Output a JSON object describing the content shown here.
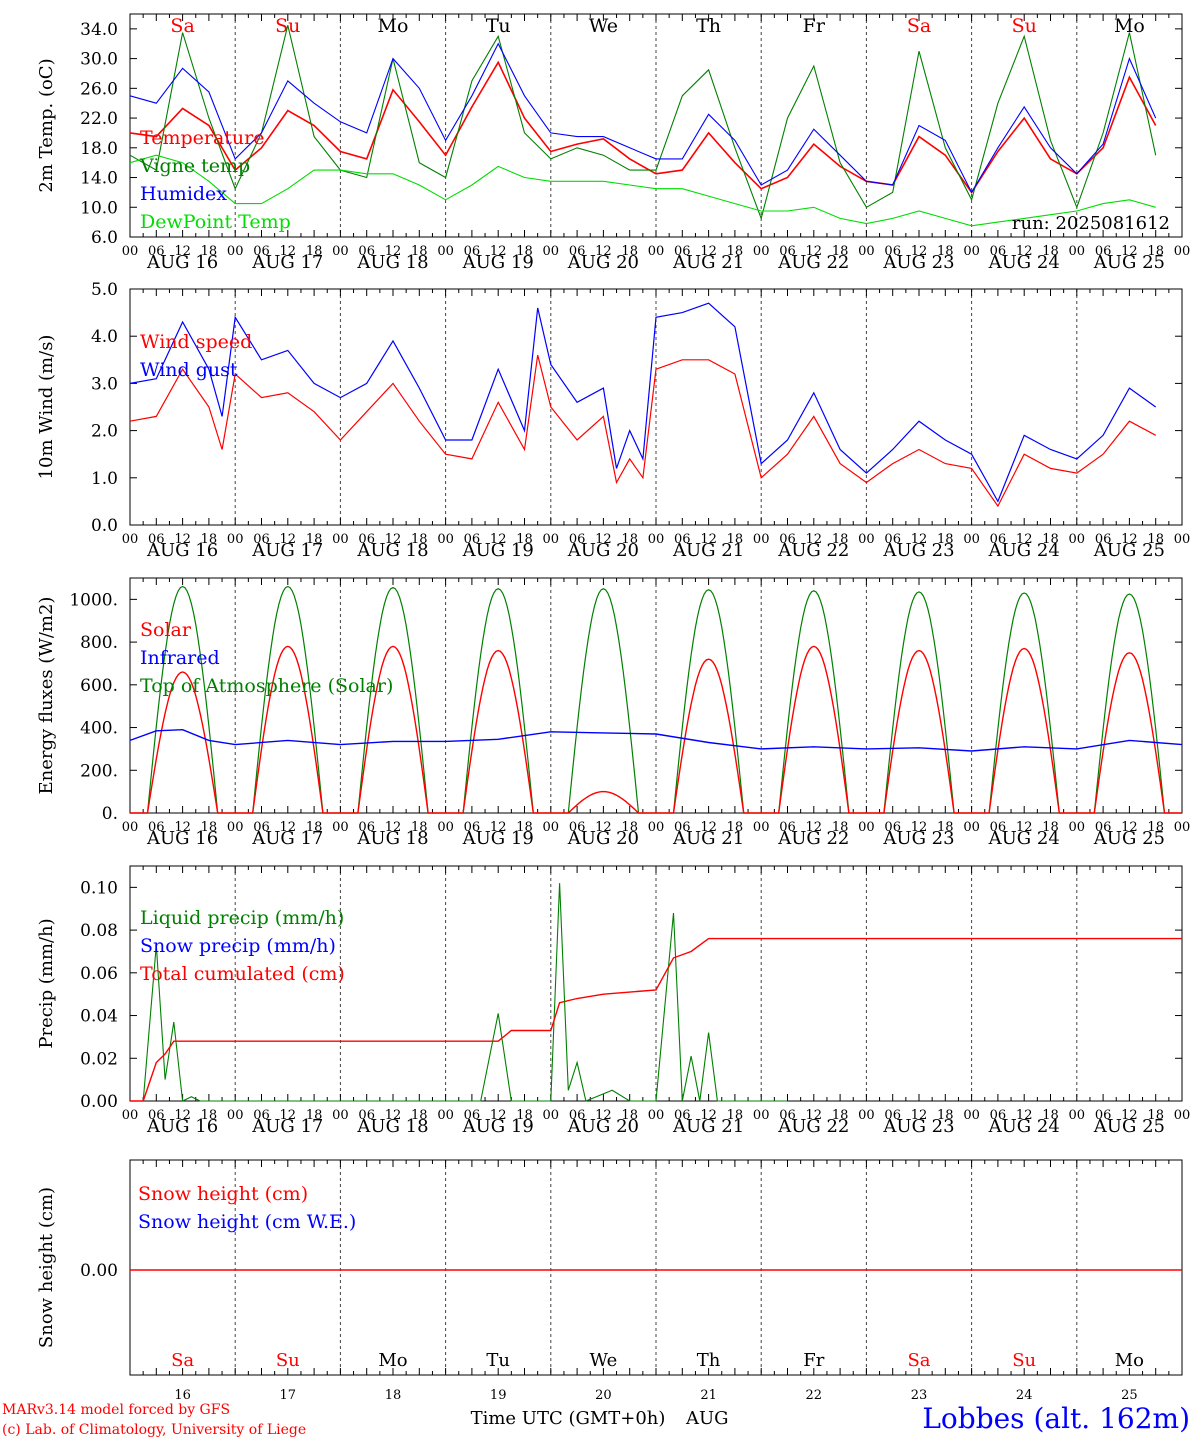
{
  "colors": {
    "red": "#ff0000",
    "green": "#008000",
    "blue": "#0000ff",
    "lime": "#00dd00",
    "black": "#000000"
  },
  "day_abbr": [
    "Sa",
    "Su",
    "Mo",
    "Tu",
    "We",
    "Th",
    "Fr",
    "Sa",
    "Su",
    "Mo"
  ],
  "day_abbr_colors": [
    "#ff0000",
    "#ff0000",
    "#000000",
    "#000000",
    "#000000",
    "#000000",
    "#000000",
    "#ff0000",
    "#ff0000",
    "#000000"
  ],
  "date_labels": [
    "AUG 16",
    "AUG 17",
    "AUG 18",
    "AUG 19",
    "AUG 20",
    "AUG 21",
    "AUG 22",
    "AUG 23",
    "AUG 24",
    "AUG 25"
  ],
  "hour_labels": [
    "00",
    "06",
    "12",
    "18"
  ],
  "bottom_day_numbers": [
    "16",
    "17",
    "18",
    "19",
    "20",
    "21",
    "22",
    "23",
    "24",
    "25"
  ],
  "footer": {
    "credit_line1": "MARv3.14 model forced by GFS",
    "credit_line2": "(c) Lab. of Climatology, University of Liege",
    "axis_title": "Time UTC (GMT+0h)",
    "month": "AUG",
    "location": "Lobbes (alt. 162m)"
  },
  "chart_data": [
    {
      "type": "line",
      "ylabel": "2m Temp. (oC)",
      "ylim": [
        6.0,
        36.0
      ],
      "yticks": [
        "6.0",
        "10.0",
        "14.0",
        "18.0",
        "22.0",
        "26.0",
        "30.0",
        "34.0"
      ],
      "annotation": "run: 2025081612",
      "x_hours": [
        0,
        6,
        12,
        18,
        24,
        30,
        36,
        42,
        48,
        54,
        60,
        66,
        72,
        78,
        84,
        90,
        96,
        102,
        108,
        114,
        120,
        126,
        132,
        138,
        144,
        150,
        156,
        162,
        168,
        174,
        180,
        186,
        192,
        198,
        204,
        210,
        216,
        222,
        228,
        234
      ],
      "series": [
        {
          "name": "Temperature",
          "color": "#ff0000",
          "values": [
            20.0,
            19.5,
            23.3,
            21.0,
            15.0,
            18.0,
            23.0,
            21.0,
            17.5,
            16.5,
            25.8,
            21.5,
            17.0,
            23.5,
            29.5,
            22.0,
            17.5,
            18.5,
            19.2,
            16.5,
            14.5,
            15.0,
            20.0,
            16.0,
            12.5,
            14.0,
            18.5,
            15.5,
            13.5,
            13.0,
            19.5,
            17.0,
            12.0,
            17.5,
            22.0,
            16.5,
            14.5,
            18.0,
            27.5,
            21.0
          ]
        },
        {
          "name": "Vigne temp",
          "color": "#008000",
          "values": [
            17.0,
            15.0,
            33.5,
            22.0,
            12.5,
            20.0,
            34.5,
            19.5,
            15.0,
            14.0,
            30.0,
            16.0,
            14.0,
            27.0,
            33.0,
            20.0,
            16.5,
            18.0,
            17.0,
            15.0,
            15.0,
            25.0,
            28.5,
            18.0,
            8.5,
            22.0,
            29.0,
            16.0,
            10.0,
            12.0,
            31.0,
            18.0,
            11.0,
            24.0,
            33.0,
            19.0,
            10.0,
            20.0,
            33.5,
            17.0
          ]
        },
        {
          "name": "Humidex",
          "color": "#0000ff",
          "values": [
            25.0,
            24.0,
            28.7,
            25.5,
            16.5,
            20.0,
            27.0,
            24.0,
            21.5,
            20.0,
            30.0,
            26.0,
            19.0,
            25.0,
            32.0,
            25.0,
            20.0,
            19.5,
            19.5,
            18.0,
            16.5,
            16.5,
            22.5,
            19.0,
            13.0,
            15.0,
            20.5,
            17.0,
            13.5,
            13.0,
            21.0,
            19.0,
            12.0,
            18.0,
            23.5,
            18.0,
            14.5,
            18.5,
            30.0,
            22.0
          ]
        },
        {
          "name": "DewPoint Temp",
          "color": "#00dd00",
          "values": [
            16.0,
            17.0,
            16.0,
            13.5,
            10.5,
            10.5,
            12.5,
            15.0,
            15.0,
            14.5,
            14.5,
            13.0,
            11.0,
            13.0,
            15.5,
            14.0,
            13.5,
            13.5,
            13.5,
            13.0,
            12.5,
            12.5,
            11.5,
            10.5,
            9.5,
            9.5,
            10.0,
            8.5,
            7.8,
            8.5,
            9.5,
            8.5,
            7.5,
            8.0,
            8.5,
            9.0,
            9.5,
            10.5,
            11.0,
            10.0
          ]
        }
      ]
    },
    {
      "type": "line",
      "ylabel": "10m Wind (m/s)",
      "ylim": [
        0.0,
        5.0
      ],
      "yticks": [
        "0.0",
        "1.0",
        "2.0",
        "3.0",
        "4.0",
        "5.0"
      ],
      "x_hours": [
        0,
        6,
        12,
        18,
        21,
        24,
        30,
        36,
        42,
        48,
        54,
        60,
        66,
        72,
        78,
        84,
        90,
        93,
        96,
        102,
        108,
        111,
        114,
        117,
        120,
        126,
        132,
        138,
        144,
        150,
        156,
        162,
        168,
        174,
        180,
        186,
        192,
        198,
        204,
        210,
        216,
        222,
        228,
        234
      ],
      "series": [
        {
          "name": "Wind speed",
          "color": "#ff0000",
          "values": [
            2.2,
            2.3,
            3.3,
            2.5,
            1.6,
            3.2,
            2.7,
            2.8,
            2.4,
            1.8,
            2.4,
            3.0,
            2.2,
            1.5,
            1.4,
            2.6,
            1.6,
            3.6,
            2.5,
            1.8,
            2.3,
            0.9,
            1.4,
            1.0,
            3.3,
            3.5,
            3.5,
            3.2,
            1.0,
            1.5,
            2.3,
            1.3,
            0.9,
            1.3,
            1.6,
            1.3,
            1.2,
            0.4,
            1.5,
            1.2,
            1.1,
            1.5,
            2.2,
            1.9
          ]
        },
        {
          "name": "Wind gust",
          "color": "#0000ff",
          "values": [
            3.0,
            3.1,
            4.3,
            3.3,
            2.3,
            4.4,
            3.5,
            3.7,
            3.0,
            2.7,
            3.0,
            3.9,
            2.9,
            1.8,
            1.8,
            3.3,
            2.0,
            4.6,
            3.4,
            2.6,
            2.9,
            1.2,
            2.0,
            1.4,
            4.4,
            4.5,
            4.7,
            4.2,
            1.3,
            1.8,
            2.8,
            1.6,
            1.1,
            1.6,
            2.2,
            1.8,
            1.5,
            0.5,
            1.9,
            1.6,
            1.4,
            1.9,
            2.9,
            2.5
          ]
        }
      ]
    },
    {
      "type": "line",
      "ylabel": "Energy fluxes (W/m2)",
      "ylim": [
        0,
        1100
      ],
      "yticks": [
        "0.",
        "200.",
        "400.",
        "600.",
        "800.",
        "1000."
      ],
      "series": [
        {
          "name": "Solar",
          "color": "#ff0000",
          "daily_peak": [
            660,
            780,
            780,
            760,
            100,
            720,
            780,
            760,
            770,
            750
          ]
        },
        {
          "name": "Infrared",
          "color": "#0000ff",
          "x_hours": [
            0,
            6,
            12,
            18,
            24,
            36,
            48,
            60,
            72,
            84,
            96,
            108,
            120,
            132,
            144,
            156,
            168,
            180,
            192,
            204,
            216,
            228,
            240
          ],
          "values": [
            340,
            385,
            390,
            340,
            320,
            340,
            320,
            335,
            335,
            345,
            380,
            375,
            370,
            330,
            300,
            310,
            300,
            305,
            290,
            310,
            300,
            340,
            320
          ]
        },
        {
          "name": "Top of Atmosphere (Solar)",
          "color": "#008000",
          "daily_peak": [
            1060,
            1060,
            1055,
            1050,
            1050,
            1045,
            1040,
            1035,
            1030,
            1025
          ]
        }
      ]
    },
    {
      "type": "line",
      "ylabel": "Precip (mm/h)",
      "ylim": [
        0.0,
        0.11
      ],
      "yticks": [
        "0.00",
        "0.02",
        "0.04",
        "0.06",
        "0.08",
        "0.10"
      ],
      "series": [
        {
          "name": "Liquid precip (mm/h)",
          "color": "#008000",
          "x_hours": [
            0,
            3,
            6,
            8,
            10,
            12,
            14,
            16,
            24,
            80,
            84,
            87,
            96,
            98,
            100,
            102,
            104,
            110,
            114,
            120,
            124,
            126,
            128,
            130,
            132,
            134,
            140,
            144,
            150
          ],
          "values": [
            0,
            0,
            0.073,
            0.01,
            0.037,
            0,
            0.002,
            0,
            0,
            0,
            0.041,
            0,
            0.0,
            0.102,
            0.005,
            0.018,
            0.0,
            0.005,
            0.0,
            0.0,
            0.088,
            0.0,
            0.021,
            0.0,
            0.032,
            0.0,
            0,
            0,
            0
          ]
        },
        {
          "name": "Snow precip (mm/h)",
          "color": "#0000ff"
        },
        {
          "name": "Total cumulated (cm)",
          "color": "#ff0000",
          "x_hours": [
            0,
            3,
            6,
            8,
            10,
            12,
            84,
            87,
            96,
            98,
            102,
            108,
            120,
            124,
            128,
            132,
            144,
            240
          ],
          "values": [
            0,
            0.0,
            0.018,
            0.022,
            0.028,
            0.028,
            0.028,
            0.033,
            0.033,
            0.046,
            0.048,
            0.05,
            0.052,
            0.067,
            0.07,
            0.076,
            0.076,
            0.076
          ]
        }
      ]
    },
    {
      "type": "line",
      "ylabel": "Snow height (cm)",
      "yticks": [
        "0.00"
      ],
      "series": [
        {
          "name": "Snow height (cm)",
          "color": "#ff0000",
          "values": [
            0,
            0
          ]
        },
        {
          "name": "Snow height (cm W.E.)",
          "color": "#0000ff"
        }
      ]
    }
  ]
}
